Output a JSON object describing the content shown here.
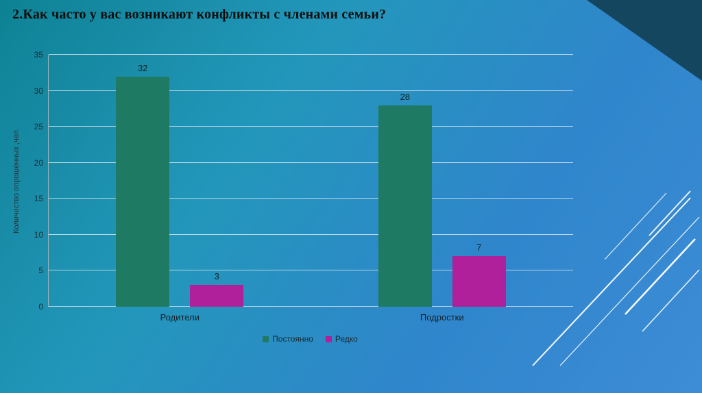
{
  "slide": {
    "title": "2.Как часто у вас возникают конфликты с членами семьи?"
  },
  "chart_data": {
    "type": "bar",
    "categories": [
      "Родители",
      "Подростки"
    ],
    "series": [
      {
        "name": "Постоянно",
        "color": "#1f7a64",
        "values": [
          32,
          28
        ]
      },
      {
        "name": "Редко",
        "color": "#b0209a",
        "values": [
          3,
          7
        ]
      }
    ],
    "ylabel": "Количество опрошенных ,чел.",
    "ylim": [
      0,
      35
    ],
    "ytick_step": 5,
    "grid": true,
    "legend_position": "bottom",
    "title": "",
    "xlabel": ""
  }
}
